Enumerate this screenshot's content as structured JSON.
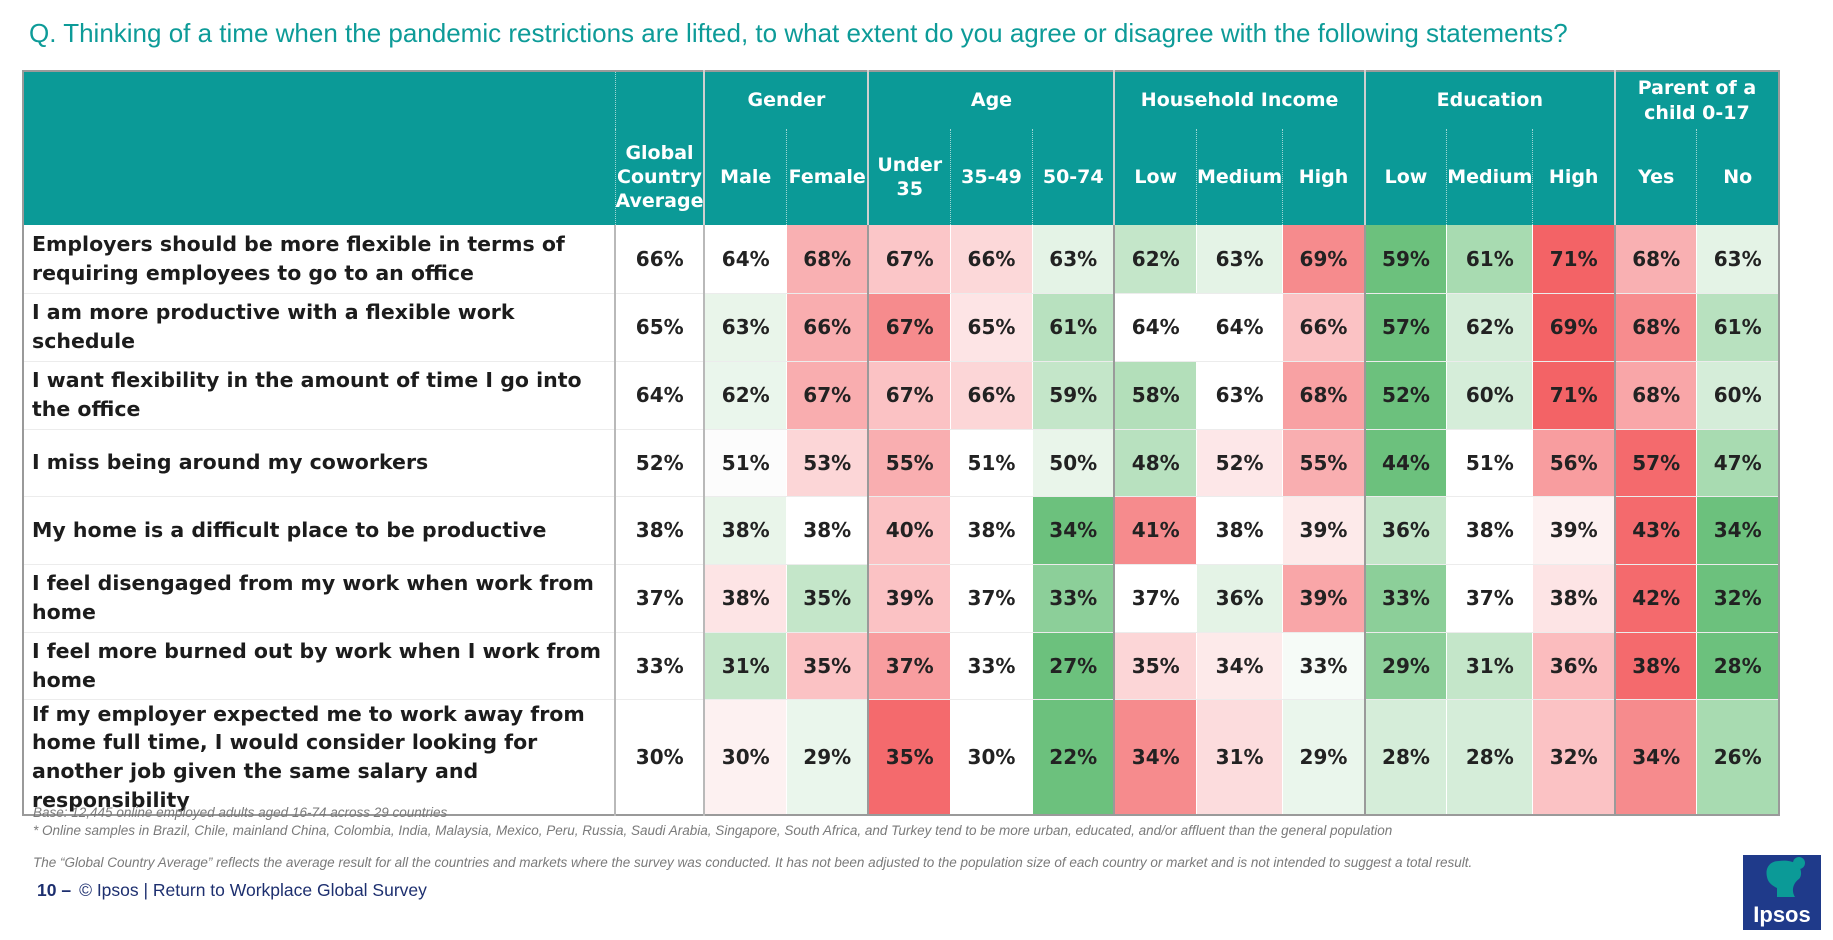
{
  "question": "Q. Thinking of a time when the pandemic restrictions are lifted, to what extent do you agree or disagree with the following statements?",
  "table": {
    "avg_header": "Global Country Average",
    "groups": [
      {
        "label": "Gender",
        "subs": [
          "Male",
          "Female"
        ]
      },
      {
        "label": "Age",
        "subs": [
          "Under 35",
          "35-49",
          "50-74"
        ]
      },
      {
        "label": "Household Income",
        "subs": [
          "Low",
          "Medium",
          "High"
        ]
      },
      {
        "label": "Education",
        "subs": [
          "Low",
          "Medium",
          "High"
        ]
      },
      {
        "label": "Parent of a child 0-17",
        "subs": [
          "Yes",
          "No"
        ]
      }
    ],
    "rows": [
      {
        "statement": "Employers should be more flexible in terms of requiring employees to go to an office",
        "avg": "66%",
        "cells": [
          [
            "64%",
            "#ffffff"
          ],
          [
            "68%",
            "#f9b0b2"
          ],
          [
            "67%",
            "#fbc6c8"
          ],
          [
            "66%",
            "#fcd8d9"
          ],
          [
            "63%",
            "#e4f3e6"
          ],
          [
            "62%",
            "#c4e6c9"
          ],
          [
            "63%",
            "#e4f3e6"
          ],
          [
            "69%",
            "#f68b8d"
          ],
          [
            "59%",
            "#6cc17d"
          ],
          [
            "61%",
            "#a8dbb1"
          ],
          [
            "71%",
            "#f36366"
          ],
          [
            "68%",
            "#f9b0b2"
          ],
          [
            "63%",
            "#e4f3e6"
          ]
        ]
      },
      {
        "statement": "I am more productive with a flexible work schedule",
        "avg": "65%",
        "cells": [
          [
            "63%",
            "#e9f5ea"
          ],
          [
            "66%",
            "#f9adaf"
          ],
          [
            "67%",
            "#f68b8d"
          ],
          [
            "65%",
            "#fde4e5"
          ],
          [
            "61%",
            "#b8e1bf"
          ],
          [
            "64%",
            "#ffffff"
          ],
          [
            "64%",
            "#ffffff"
          ],
          [
            "66%",
            "#fbc2c4"
          ],
          [
            "57%",
            "#6cc17d"
          ],
          [
            "62%",
            "#d5edd9"
          ],
          [
            "69%",
            "#f36366"
          ],
          [
            "68%",
            "#f78c8e"
          ],
          [
            "61%",
            "#b8e1bf"
          ]
        ]
      },
      {
        "statement": "I want flexibility in the amount of time I go into the office",
        "avg": "64%",
        "cells": [
          [
            "62%",
            "#eaf6ec"
          ],
          [
            "67%",
            "#f9adaf"
          ],
          [
            "67%",
            "#fbc2c4"
          ],
          [
            "66%",
            "#fcd6d7"
          ],
          [
            "59%",
            "#c4e6c9"
          ],
          [
            "58%",
            "#b3dfba"
          ],
          [
            "63%",
            "#ffffff"
          ],
          [
            "68%",
            "#f8a1a3"
          ],
          [
            "52%",
            "#6cc17d"
          ],
          [
            "60%",
            "#d5edd9"
          ],
          [
            "71%",
            "#f36366"
          ],
          [
            "68%",
            "#f9a6a8"
          ],
          [
            "60%",
            "#d5edd9"
          ]
        ]
      },
      {
        "statement": "I miss being around my coworkers",
        "avg": "52%",
        "cells": [
          [
            "51%",
            "#fcfcfc"
          ],
          [
            "53%",
            "#fcd6d7"
          ],
          [
            "55%",
            "#f9aeb0"
          ],
          [
            "51%",
            "#ffffff"
          ],
          [
            "50%",
            "#e9f5ea"
          ],
          [
            "48%",
            "#b8e1bf"
          ],
          [
            "52%",
            "#fde7e8"
          ],
          [
            "55%",
            "#f9aeb0"
          ],
          [
            "44%",
            "#6cc17d"
          ],
          [
            "51%",
            "#ffffff"
          ],
          [
            "56%",
            "#f89d9f"
          ],
          [
            "57%",
            "#f46a6d"
          ],
          [
            "47%",
            "#a8dbb1"
          ]
        ]
      },
      {
        "statement": "My home is a difficult place to be productive",
        "avg": "38%",
        "cells": [
          [
            "38%",
            "#e9f5ea"
          ],
          [
            "38%",
            "#ffffff"
          ],
          [
            "40%",
            "#fbc2c4"
          ],
          [
            "38%",
            "#ffffff"
          ],
          [
            "34%",
            "#6cc17d"
          ],
          [
            "41%",
            "#f68b8d"
          ],
          [
            "38%",
            "#ffffff"
          ],
          [
            "39%",
            "#fdeaea"
          ],
          [
            "36%",
            "#c4e6c9"
          ],
          [
            "38%",
            "#ffffff"
          ],
          [
            "39%",
            "#fdf1f1"
          ],
          [
            "43%",
            "#f46a6d"
          ],
          [
            "34%",
            "#6cc17d"
          ]
        ]
      },
      {
        "statement": "I feel disengaged from my work when work from home",
        "avg": "37%",
        "cells": [
          [
            "38%",
            "#fde4e5"
          ],
          [
            "35%",
            "#c4e6c9"
          ],
          [
            "39%",
            "#fbc2c4"
          ],
          [
            "37%",
            "#ffffff"
          ],
          [
            "33%",
            "#8ccf99"
          ],
          [
            "37%",
            "#ffffff"
          ],
          [
            "36%",
            "#e4f3e6"
          ],
          [
            "39%",
            "#f9a6a8"
          ],
          [
            "33%",
            "#8ccf99"
          ],
          [
            "37%",
            "#ffffff"
          ],
          [
            "38%",
            "#fde4e5"
          ],
          [
            "42%",
            "#f46a6d"
          ],
          [
            "32%",
            "#6cc17d"
          ]
        ]
      },
      {
        "statement": "I feel more burned out by work when I work from home",
        "avg": "33%",
        "cells": [
          [
            "31%",
            "#c4e6c9"
          ],
          [
            "35%",
            "#fbc2c4"
          ],
          [
            "37%",
            "#f89d9f"
          ],
          [
            "33%",
            "#ffffff"
          ],
          [
            "27%",
            "#6cc17d"
          ],
          [
            "35%",
            "#fcd6d7"
          ],
          [
            "34%",
            "#fdeaea"
          ],
          [
            "33%",
            "#f6fbf7"
          ],
          [
            "29%",
            "#8ccf99"
          ],
          [
            "31%",
            "#c4e6c9"
          ],
          [
            "36%",
            "#fbbcbe"
          ],
          [
            "38%",
            "#f46a6d"
          ],
          [
            "28%",
            "#6cc17d"
          ]
        ]
      },
      {
        "statement": "If my employer expected me to work away from home full time, I would consider looking for another job given the same salary and responsibility",
        "avg": "30%",
        "cells": [
          [
            "30%",
            "#fdf1f1"
          ],
          [
            "29%",
            "#eaf6ec"
          ],
          [
            "35%",
            "#f46a6d"
          ],
          [
            "30%",
            "#ffffff"
          ],
          [
            "22%",
            "#6cc17d"
          ],
          [
            "34%",
            "#f68b8d"
          ],
          [
            "31%",
            "#fcdcdd"
          ],
          [
            "29%",
            "#eaf6ec"
          ],
          [
            "28%",
            "#d5edd9"
          ],
          [
            "28%",
            "#d5edd9"
          ],
          [
            "32%",
            "#fbc2c4"
          ],
          [
            "34%",
            "#f68b8d"
          ],
          [
            "26%",
            "#a8dbb1"
          ]
        ]
      }
    ]
  },
  "notes": {
    "base": "Base: 12,445 online employed adults aged 16-74 across 29 countries",
    "samples": "* Online samples in Brazil, Chile, mainland China, Colombia, India, Malaysia, Mexico, Peru, Russia, Saudi Arabia, Singapore, South Africa, and Turkey tend to be more urban, educated, and/or affluent than the general population",
    "gca": "The “Global  Country Average” reflects the average result for all the countries and markets where the survey was conducted. It has not been adjusted to the population size of each country or market and is not intended to suggest a total result."
  },
  "footer": {
    "page": "10 –",
    "copyright": "© Ipsos | ",
    "link": "Return to Workplace Global Survey"
  },
  "logo": {
    "text": "Ipsos",
    "color": "#1f3a8a",
    "accent": "#0b9a97"
  }
}
